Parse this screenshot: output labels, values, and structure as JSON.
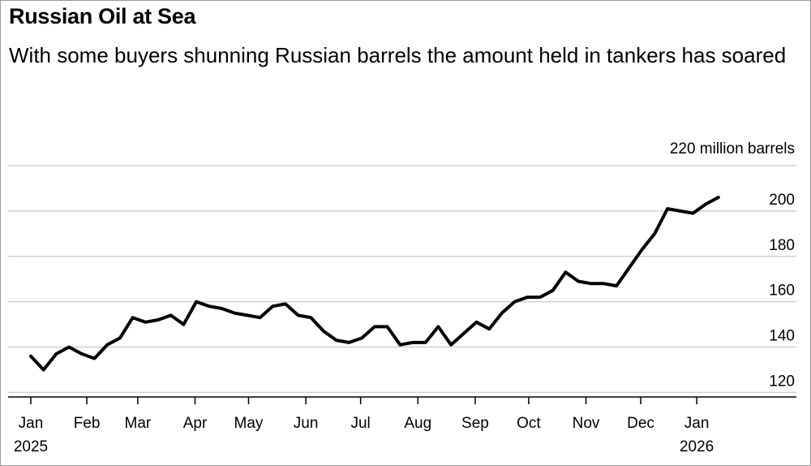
{
  "chart_data": {
    "type": "line",
    "title": "Russian Oil at Sea",
    "subtitle": "With some buyers shunning Russian barrels the amount held in tankers has soared",
    "ylabel": "220 million barrels",
    "ylim": [
      118,
      220
    ],
    "y_ticks": [
      120,
      140,
      160,
      180,
      200
    ],
    "x_ticks": [
      {
        "label": "Jan",
        "sub": "2025",
        "week": 0
      },
      {
        "label": "Feb",
        "sub": "",
        "week": 4.4
      },
      {
        "label": "Mar",
        "sub": "",
        "week": 8.4
      },
      {
        "label": "Apr",
        "sub": "",
        "week": 12.9
      },
      {
        "label": "May",
        "sub": "",
        "week": 17.1
      },
      {
        "label": "Jun",
        "sub": "",
        "week": 21.6
      },
      {
        "label": "Jul",
        "sub": "",
        "week": 25.9
      },
      {
        "label": "Aug",
        "sub": "",
        "week": 30.4
      },
      {
        "label": "Sep",
        "sub": "",
        "week": 34.9
      },
      {
        "label": "Oct",
        "sub": "",
        "week": 39.1
      },
      {
        "label": "Nov",
        "sub": "",
        "week": 43.6
      },
      {
        "label": "Dec",
        "sub": "",
        "week": 47.9
      },
      {
        "label": "Jan",
        "sub": "2026",
        "week": 52.3
      }
    ],
    "grid": true,
    "series": [
      {
        "values": [
          {
            "x": 0,
            "y": 136
          },
          {
            "x": 1,
            "y": 130
          },
          {
            "x": 2,
            "y": 137
          },
          {
            "x": 3,
            "y": 140
          },
          {
            "x": 4,
            "y": 137
          },
          {
            "x": 5,
            "y": 135
          },
          {
            "x": 6,
            "y": 141
          },
          {
            "x": 7,
            "y": 144
          },
          {
            "x": 8,
            "y": 153
          },
          {
            "x": 9,
            "y": 151
          },
          {
            "x": 10,
            "y": 152
          },
          {
            "x": 11,
            "y": 154
          },
          {
            "x": 12,
            "y": 150
          },
          {
            "x": 13,
            "y": 160
          },
          {
            "x": 14,
            "y": 158
          },
          {
            "x": 15,
            "y": 157
          },
          {
            "x": 16,
            "y": 155
          },
          {
            "x": 17,
            "y": 154
          },
          {
            "x": 18,
            "y": 153
          },
          {
            "x": 19,
            "y": 158
          },
          {
            "x": 20,
            "y": 159
          },
          {
            "x": 21,
            "y": 154
          },
          {
            "x": 22,
            "y": 153
          },
          {
            "x": 23,
            "y": 147
          },
          {
            "x": 24,
            "y": 143
          },
          {
            "x": 25,
            "y": 142
          },
          {
            "x": 26,
            "y": 144
          },
          {
            "x": 27,
            "y": 149
          },
          {
            "x": 28,
            "y": 149
          },
          {
            "x": 29,
            "y": 141
          },
          {
            "x": 30,
            "y": 142
          },
          {
            "x": 31,
            "y": 142
          },
          {
            "x": 32,
            "y": 149
          },
          {
            "x": 33,
            "y": 141
          },
          {
            "x": 34,
            "y": 146
          },
          {
            "x": 35,
            "y": 151
          },
          {
            "x": 36,
            "y": 148
          },
          {
            "x": 37,
            "y": 155
          },
          {
            "x": 38,
            "y": 160
          },
          {
            "x": 39,
            "y": 162
          },
          {
            "x": 40,
            "y": 162
          },
          {
            "x": 41,
            "y": 165
          },
          {
            "x": 42,
            "y": 173
          },
          {
            "x": 43,
            "y": 169
          },
          {
            "x": 44,
            "y": 168
          },
          {
            "x": 45,
            "y": 168
          },
          {
            "x": 46,
            "y": 167
          },
          {
            "x": 47,
            "y": 175
          },
          {
            "x": 48,
            "y": 183
          },
          {
            "x": 49,
            "y": 190
          },
          {
            "x": 50,
            "y": 201
          },
          {
            "x": 51,
            "y": 200
          },
          {
            "x": 52,
            "y": 199
          },
          {
            "x": 53,
            "y": 203
          },
          {
            "x": 54,
            "y": 206
          }
        ]
      }
    ]
  }
}
